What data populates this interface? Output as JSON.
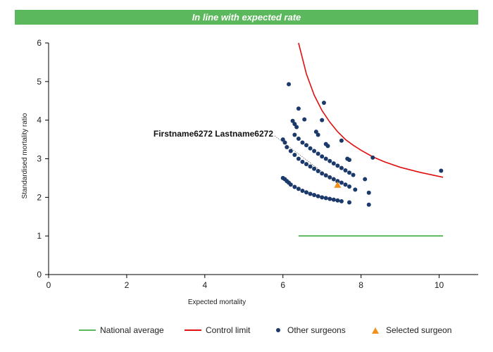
{
  "header": {
    "title": "In line with expected rate"
  },
  "colors": {
    "banner": "#5cb85c",
    "national": "#5cb85c",
    "control": "#e01010",
    "others": "#1b3a6b",
    "selected": "#f0901e"
  },
  "legend": {
    "national": "National average",
    "control": "Control limit",
    "others": "Other surgeons",
    "selected": "Selected surgeon"
  },
  "chart_data": {
    "type": "scatter",
    "xlabel": "Expected mortality",
    "ylabel": "Standardised mortality ratio",
    "xlim": [
      0,
      11
    ],
    "ylim": [
      0,
      6
    ],
    "xticks": [
      0,
      2,
      4,
      6,
      8,
      10
    ],
    "yticks": [
      0,
      1,
      2,
      3,
      4,
      5,
      6
    ],
    "grid": false,
    "legend_position": "bottom",
    "annotation": "Firstname6272 Lastname6272",
    "series": [
      {
        "name": "National average",
        "kind": "line",
        "x": [
          6.4,
          10.1
        ],
        "y": [
          1.0,
          1.0
        ]
      },
      {
        "name": "Control limit",
        "kind": "line",
        "x": [
          6.4,
          6.6,
          6.8,
          7.0,
          7.2,
          7.4,
          7.6,
          7.8,
          8.0,
          8.3,
          8.6,
          9.0,
          9.5,
          10.1
        ],
        "y": [
          6.0,
          5.2,
          4.65,
          4.25,
          3.95,
          3.7,
          3.5,
          3.35,
          3.22,
          3.05,
          2.92,
          2.78,
          2.65,
          2.52
        ]
      },
      {
        "name": "Other surgeons",
        "kind": "scatter",
        "x": [
          6.0,
          6.05,
          6.1,
          6.15,
          6.2,
          6.3,
          6.4,
          6.5,
          6.6,
          6.7,
          6.8,
          6.9,
          7.0,
          7.1,
          7.2,
          7.3,
          7.4,
          7.5,
          6.0,
          6.05,
          6.1,
          6.2,
          6.3,
          6.4,
          6.5,
          6.6,
          6.7,
          6.8,
          6.9,
          7.0,
          7.1,
          7.2,
          7.3,
          7.4,
          7.5,
          7.6,
          7.7,
          6.3,
          6.4,
          6.5,
          6.6,
          6.7,
          6.8,
          6.9,
          7.0,
          7.1,
          7.2,
          7.3,
          7.4,
          7.5,
          7.6,
          7.7,
          7.8,
          6.25,
          6.3,
          6.35,
          6.15,
          6.4,
          6.55,
          6.85,
          6.9,
          7.0,
          7.05,
          7.1,
          7.15,
          7.5,
          7.65,
          7.7,
          7.7,
          7.85,
          8.1,
          8.2,
          8.2,
          8.3,
          10.05
        ],
        "y": [
          2.5,
          2.47,
          2.42,
          2.38,
          2.33,
          2.27,
          2.22,
          2.17,
          2.13,
          2.09,
          2.06,
          2.03,
          2.0,
          1.98,
          1.96,
          1.94,
          1.92,
          1.9,
          3.5,
          3.42,
          3.3,
          3.2,
          3.1,
          3.0,
          2.92,
          2.86,
          2.8,
          2.74,
          2.68,
          2.62,
          2.57,
          2.52,
          2.47,
          2.42,
          2.38,
          2.33,
          2.28,
          3.62,
          3.52,
          3.42,
          3.35,
          3.27,
          3.2,
          3.13,
          3.06,
          3.0,
          2.94,
          2.88,
          2.82,
          2.76,
          2.7,
          2.64,
          2.58,
          3.98,
          3.9,
          3.82,
          4.93,
          4.3,
          4.02,
          3.7,
          3.62,
          4.0,
          4.45,
          3.38,
          3.33,
          3.47,
          3.0,
          2.97,
          1.87,
          2.2,
          2.47,
          2.12,
          1.81,
          3.03,
          2.69
        ]
      },
      {
        "name": "Selected surgeon",
        "kind": "scatter",
        "x": [
          7.4
        ],
        "y": [
          2.32
        ]
      }
    ]
  }
}
